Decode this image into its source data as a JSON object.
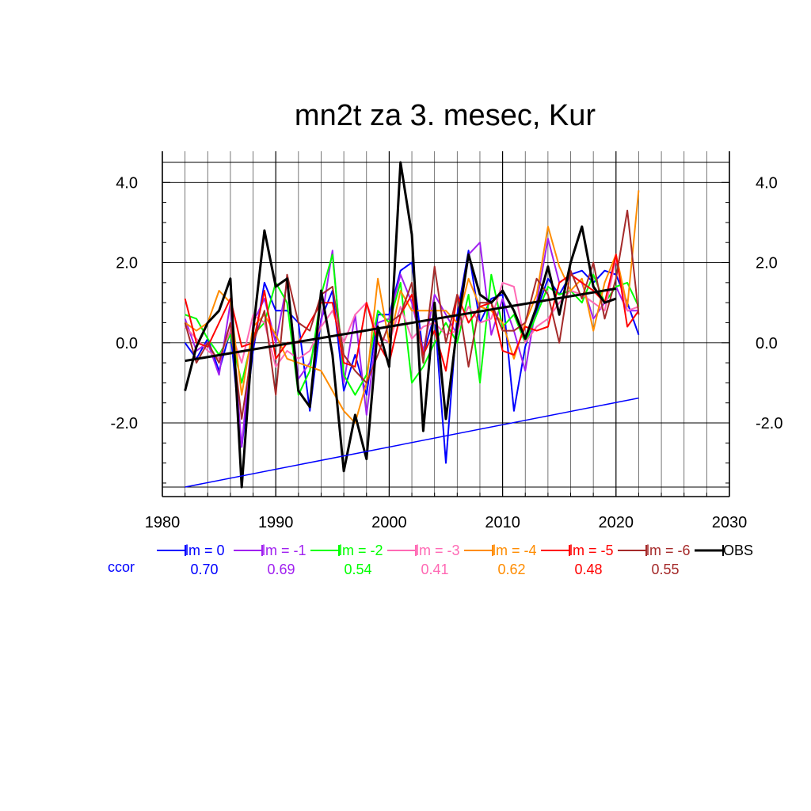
{
  "chart_data": {
    "type": "line",
    "title": "mn2t za 3. mesec, Kur",
    "xlim": [
      1980,
      2030
    ],
    "ylim": [
      -3.6,
      4.5
    ],
    "x_ticks": [
      "1980",
      "1990",
      "2000",
      "2010",
      "2020",
      "2030"
    ],
    "y_ticks_left": [
      "4.0",
      "2.0",
      "0.0",
      "-2.0"
    ],
    "y_ticks_right": [
      "4.0",
      "2.0",
      "0.0",
      "-2.0"
    ],
    "grid": true,
    "legend_position": "bottom",
    "ccor_label": "ccor",
    "series": [
      {
        "name": "lm = 0",
        "ccor": "0.70",
        "color": "#0000ff",
        "x": [
          1982,
          1983,
          1984,
          1985,
          1986,
          1987,
          1988,
          1989,
          1990,
          1991,
          1992,
          1993,
          1994,
          1995,
          1996,
          1997,
          1998,
          1999,
          2000,
          2001,
          2002,
          2003,
          2004,
          2005,
          2006,
          2007,
          2008,
          2009,
          2010,
          2011,
          2012,
          2013,
          2014,
          2015,
          2016,
          2017,
          2018,
          2019,
          2020,
          2021,
          2022
        ],
        "y": [
          0.0,
          -0.4,
          0.1,
          -0.7,
          0.3,
          -2.6,
          -0.2,
          1.5,
          0.8,
          0.8,
          0.5,
          -1.7,
          0.6,
          1.3,
          -1.2,
          -0.3,
          -1.3,
          0.7,
          0.7,
          1.8,
          2.0,
          -0.3,
          0.7,
          -3.0,
          0.7,
          2.3,
          0.5,
          1.1,
          1.2,
          -1.7,
          -0.1,
          0.8,
          1.6,
          1.2,
          1.7,
          1.8,
          1.5,
          1.8,
          1.7,
          1.0,
          0.2
        ]
      },
      {
        "name": "lm = -1",
        "ccor": "0.69",
        "color": "#a020f0",
        "x": [
          1982,
          1983,
          1984,
          1985,
          1986,
          1987,
          1988,
          1989,
          1990,
          1991,
          1992,
          1993,
          1994,
          1995,
          1996,
          1997,
          1998,
          1999,
          2000,
          2001,
          2002,
          2003,
          2004,
          2005,
          2006,
          2007,
          2008,
          2009,
          2010,
          2011,
          2012,
          2013,
          2014,
          2015,
          2016,
          2017,
          2018,
          2019,
          2020,
          2021,
          2022
        ],
        "y": [
          0.6,
          -0.2,
          0.0,
          -0.8,
          1.0,
          -2.6,
          0.5,
          1.1,
          0.0,
          1.5,
          -0.9,
          -0.5,
          0.5,
          2.3,
          -1.0,
          0.7,
          -1.8,
          0.5,
          0.6,
          1.7,
          1.0,
          -0.2,
          1.2,
          0.7,
          0.2,
          2.2,
          2.5,
          0.2,
          1.1,
          0.3,
          -0.7,
          1.0,
          2.6,
          1.5,
          1.7,
          1.5,
          0.6,
          1.0,
          1.4,
          0.8,
          0.8
        ]
      },
      {
        "name": "lm = -2",
        "ccor": "0.54",
        "color": "#00ff00",
        "x": [
          1982,
          1983,
          1984,
          1985,
          1986,
          1987,
          1988,
          1989,
          1990,
          1991,
          1992,
          1993,
          1994,
          1995,
          1996,
          1997,
          1998,
          1999,
          2000,
          2001,
          2002,
          2003,
          2004,
          2005,
          2006,
          2007,
          2008,
          2009,
          2010,
          2011,
          2012,
          2013,
          2014,
          2015,
          2016,
          2017,
          2018,
          2019,
          2020,
          2021,
          2022
        ],
        "y": [
          0.7,
          0.6,
          0.1,
          -0.3,
          0.2,
          -1.0,
          0.2,
          0.5,
          1.5,
          1.0,
          -1.3,
          -0.7,
          1.2,
          2.2,
          -0.8,
          -1.3,
          -0.8,
          0.8,
          0.5,
          1.5,
          -1.0,
          -0.6,
          0.0,
          0.5,
          0.0,
          1.2,
          -1.0,
          1.7,
          0.4,
          0.7,
          0.0,
          0.7,
          1.4,
          1.2,
          1.3,
          1.0,
          1.7,
          1.0,
          1.4,
          1.5,
          0.9
        ]
      },
      {
        "name": "lm = -3",
        "ccor": "0.41",
        "color": "#ff69b4",
        "x": [
          1982,
          1983,
          1984,
          1985,
          1986,
          1987,
          1988,
          1989,
          1990,
          1991,
          1992,
          1993,
          1994,
          1995,
          1996,
          1997,
          1998,
          1999,
          2000,
          2001,
          2002,
          2003,
          2004,
          2005,
          2006,
          2007,
          2008,
          2009,
          2010,
          2011,
          2012,
          2013,
          2014,
          2015,
          2016,
          2017,
          2018,
          2019,
          2020,
          2021,
          2022
        ],
        "y": [
          0.4,
          0.1,
          -0.2,
          -0.4,
          0.3,
          -0.5,
          0.7,
          0.5,
          -0.6,
          -0.2,
          -0.4,
          -0.2,
          0.4,
          0.8,
          0.0,
          0.7,
          1.0,
          0.2,
          0.0,
          0.9,
          0.1,
          0.4,
          0.5,
          0.2,
          0.3,
          0.9,
          0.5,
          0.6,
          1.5,
          1.4,
          0.0,
          0.4,
          0.6,
          1.0,
          1.3,
          1.2,
          1.0,
          0.8,
          2.1,
          0.8,
          0.9
        ]
      },
      {
        "name": "lm = -4",
        "ccor": "0.62",
        "color": "#ff8c00",
        "x": [
          1982,
          1983,
          1984,
          1985,
          1986,
          1987,
          1988,
          1989,
          1990,
          1991,
          1992,
          1993,
          1994,
          1995,
          1996,
          1997,
          1998,
          1999,
          2000,
          2001,
          2002,
          2003,
          2004,
          2005,
          2006,
          2007,
          2008,
          2009,
          2010,
          2011,
          2012,
          2013,
          2014,
          2015,
          2016,
          2017,
          2018,
          2019,
          2020,
          2021,
          2022
        ],
        "y": [
          0.5,
          0.3,
          0.5,
          1.3,
          1.0,
          -1.3,
          0.4,
          0.7,
          0.2,
          -0.4,
          -0.5,
          -0.6,
          -0.7,
          -1.2,
          -1.7,
          -2.0,
          -1.0,
          1.6,
          0.0,
          1.3,
          0.8,
          0.8,
          0.8,
          0.8,
          0.5,
          1.6,
          0.9,
          0.8,
          0.5,
          -0.4,
          0.5,
          1.2,
          2.9,
          1.9,
          1.3,
          1.6,
          0.3,
          1.5,
          2.2,
          0.9,
          3.8
        ]
      },
      {
        "name": "lm = -5",
        "ccor": "0.48",
        "color": "#ff0000",
        "x": [
          1982,
          1983,
          1984,
          1985,
          1986,
          1987,
          1988,
          1989,
          1990,
          1991,
          1992,
          1993,
          1994,
          1995,
          1996,
          1997,
          1998,
          1999,
          2000,
          2001,
          2002,
          2003,
          2004,
          2005,
          2006,
          2007,
          2008,
          2009,
          2010,
          2011,
          2012,
          2013,
          2014,
          2015,
          2016,
          2017,
          2018,
          2019,
          2020,
          2021,
          2022
        ],
        "y": [
          1.1,
          0.0,
          -0.1,
          0.5,
          1.1,
          -0.1,
          0.0,
          1.3,
          -0.4,
          0.0,
          0.0,
          0.5,
          1.0,
          1.0,
          -0.5,
          -0.6,
          1.0,
          0.0,
          -0.5,
          0.7,
          1.2,
          -0.3,
          0.3,
          -0.7,
          1.2,
          0.5,
          0.9,
          1.0,
          -0.2,
          -0.3,
          0.4,
          0.3,
          0.4,
          1.5,
          1.7,
          1.5,
          1.3,
          1.0,
          2.2,
          0.4,
          0.8
        ]
      },
      {
        "name": "lm = -6",
        "ccor": "0.55",
        "color": "#a52a2a",
        "x": [
          1982,
          1983,
          1984,
          1985,
          1986,
          1987,
          1988,
          1989,
          1990,
          1991,
          1992,
          1993,
          1994,
          1995,
          1996,
          1997,
          1998,
          1999,
          2000,
          2001,
          2002,
          2003,
          2004,
          2005,
          2006,
          2007,
          2008,
          2009,
          2010,
          2011,
          2012,
          2013,
          2014,
          2015,
          2016,
          2017,
          2018,
          2019,
          2020,
          2021,
          2022
        ],
        "y": [
          0.5,
          -0.5,
          0.0,
          -0.5,
          0.5,
          -1.9,
          0.0,
          0.8,
          -1.3,
          1.7,
          0.5,
          0.3,
          1.2,
          1.4,
          -0.3,
          -0.7,
          -1.0,
          -0.3,
          0.5,
          0.7,
          1.5,
          -0.5,
          1.9,
          0.0,
          1.2,
          -0.6,
          1.0,
          1.0,
          0.3,
          0.3,
          0.5,
          1.6,
          1.2,
          0.0,
          1.8,
          1.1,
          2.0,
          0.6,
          1.6,
          3.3,
          0.7
        ]
      },
      {
        "name": "OBS",
        "color": "#000000",
        "x": [
          1982,
          1983,
          1984,
          1985,
          1986,
          1987,
          1988,
          1989,
          1990,
          1991,
          1992,
          1993,
          1994,
          1995,
          1996,
          1997,
          1998,
          1999,
          2000,
          2001,
          2002,
          2003,
          2004,
          2005,
          2006,
          2007,
          2008,
          2009,
          2010,
          2011,
          2012,
          2013,
          2014,
          2015,
          2016,
          2017,
          2018,
          2019,
          2020
        ],
        "y": [
          -1.2,
          -0.1,
          0.5,
          0.8,
          1.6,
          -3.6,
          0.3,
          2.8,
          1.4,
          1.6,
          -1.2,
          -1.6,
          1.3,
          -0.3,
          -3.2,
          -1.8,
          -2.9,
          0.4,
          -0.6,
          4.5,
          2.7,
          -2.2,
          1.0,
          -1.9,
          0.4,
          2.2,
          1.2,
          1.0,
          1.3,
          0.8,
          0.1,
          0.9,
          1.9,
          0.7,
          2.0,
          2.9,
          1.4,
          1.0,
          1.1
        ]
      }
    ],
    "trend_lines": [
      {
        "color": "#000000",
        "x": [
          1982,
          2020
        ],
        "y": [
          -0.45,
          1.35
        ]
      },
      {
        "color": "#0000ff",
        "x": [
          1982,
          2022
        ],
        "y": [
          -3.6,
          -1.38
        ]
      }
    ]
  }
}
